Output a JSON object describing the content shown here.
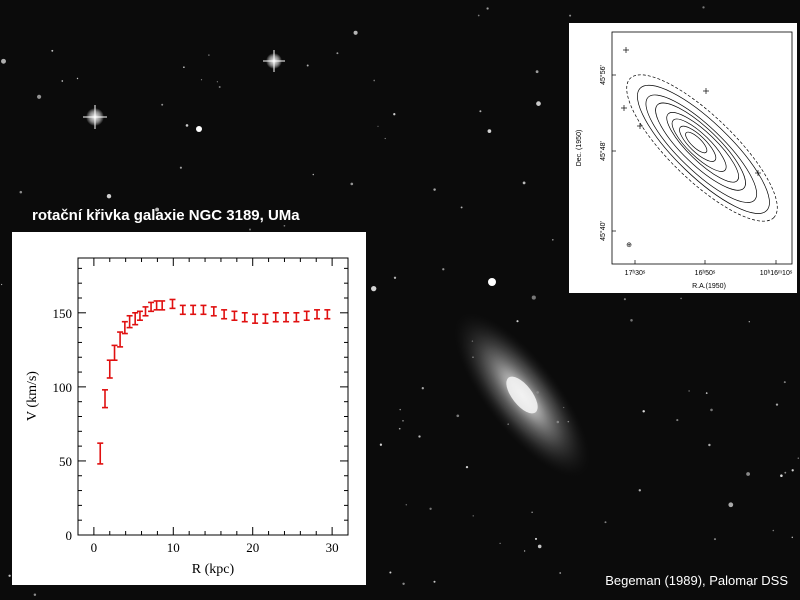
{
  "title": "rotační křivka galaxie NGC 3189, UMa",
  "credit": "Begeman (1989), Palomar DSS",
  "colors": {
    "background": "#0b0b0b",
    "data_points": "#e01010",
    "axis": "#000000"
  },
  "chart_data": [
    {
      "type": "scatter",
      "title": "",
      "xlabel": "R (kpc)",
      "ylabel": "V (km/s)",
      "xlim": [
        -2,
        32
      ],
      "ylim": [
        0,
        187
      ],
      "xticks": [
        0,
        10,
        20,
        30
      ],
      "yticks": [
        0,
        50,
        100,
        150
      ],
      "grid": false,
      "series": [
        {
          "x": [
            0.8,
            1.4,
            2.0,
            2.6,
            3.3,
            3.9,
            4.5,
            5.2,
            5.8,
            6.5,
            7.2,
            7.9,
            8.6,
            9.9,
            11.2,
            12.5,
            13.8,
            15.1,
            16.4,
            17.7,
            19.0,
            20.3,
            21.6,
            22.9,
            24.2,
            25.5,
            26.8,
            28.1,
            29.4
          ],
          "values": [
            55,
            92,
            112,
            123,
            132,
            140,
            144,
            146,
            148,
            151,
            154,
            155,
            155,
            156,
            152,
            152,
            152,
            151,
            149,
            148,
            147,
            146,
            146,
            147,
            147,
            147,
            148,
            149,
            149
          ],
          "errors": [
            7,
            6,
            6,
            5,
            5,
            4,
            4,
            4,
            3,
            3,
            3,
            3,
            3,
            3,
            3,
            3,
            3,
            3,
            3,
            3,
            3,
            3,
            3,
            3,
            3,
            3,
            3,
            3,
            3
          ]
        }
      ]
    },
    {
      "type": "contour",
      "xlabel": "R.A.(1950)",
      "ylabel": "Dec. (1950)",
      "xticks": [
        "17ʰ30ˢ",
        "16ʰ50ˢ",
        "10ʰ16ᵐ10ˢ"
      ],
      "yticks": [
        "45°56'",
        "45°48'",
        "45°40'"
      ],
      "beam_label": "⊕"
    }
  ]
}
